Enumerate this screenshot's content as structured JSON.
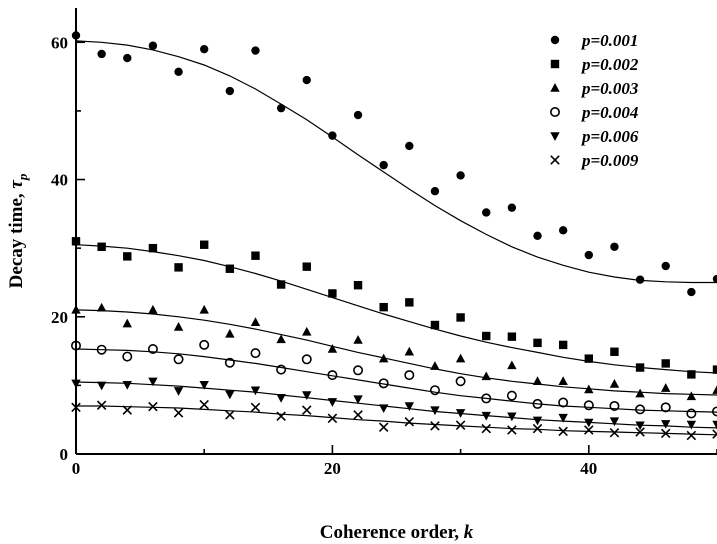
{
  "chart_data": {
    "type": "scatter",
    "xlabel": "Coherence order, ",
    "xlabel_var": "k",
    "ylabel": "Decay time, ",
    "ylabel_var": "τ",
    "ylabel_sub": "p",
    "xlim": [
      0,
      50
    ],
    "ylim": [
      0,
      65
    ],
    "xticks": [
      0,
      20,
      40
    ],
    "yticks": [
      0,
      20,
      40,
      60
    ],
    "legend_position": "top-right",
    "grid": false,
    "x": [
      0,
      2,
      4,
      6,
      8,
      10,
      12,
      14,
      16,
      18,
      20,
      22,
      24,
      26,
      28,
      30,
      32,
      34,
      36,
      38,
      40,
      42,
      44,
      46,
      48,
      50
    ],
    "series": [
      {
        "name": "p=0.001",
        "marker": "circle-filled",
        "values": [
          61.0,
          58.3,
          57.7,
          59.5,
          55.7,
          59.0,
          52.9,
          58.8,
          50.4,
          54.5,
          46.4,
          49.4,
          42.1,
          44.9,
          38.3,
          40.6,
          35.2,
          35.9,
          31.8,
          32.6,
          29.0,
          30.2,
          25.4,
          27.4,
          23.6,
          25.5
        ],
        "fit": [
          60.2,
          60.0,
          59.6,
          58.9,
          57.9,
          56.7,
          55.1,
          53.2,
          51.0,
          48.7,
          46.2,
          43.6,
          41.1,
          38.6,
          36.2,
          34.0,
          32.0,
          30.2,
          28.7,
          27.5,
          26.5,
          25.8,
          25.3,
          25.1,
          25.0,
          25.0
        ]
      },
      {
        "name": "p=0.002",
        "marker": "square-filled",
        "values": [
          31.0,
          30.2,
          28.8,
          30.0,
          27.2,
          30.5,
          27.0,
          28.9,
          24.7,
          27.3,
          23.4,
          24.6,
          21.4,
          22.1,
          18.8,
          19.9,
          17.2,
          17.1,
          16.2,
          15.9,
          13.9,
          14.9,
          12.6,
          13.2,
          11.6,
          12.3
        ],
        "fit": [
          30.5,
          30.3,
          30.0,
          29.5,
          28.9,
          28.2,
          27.3,
          26.3,
          25.2,
          24.0,
          22.8,
          21.6,
          20.4,
          19.3,
          18.2,
          17.2,
          16.3,
          15.5,
          14.8,
          14.1,
          13.5,
          13.0,
          12.6,
          12.3,
          12.0,
          11.8
        ]
      },
      {
        "name": "p=0.003",
        "marker": "triangle-filled",
        "values": [
          21.0,
          21.3,
          19.0,
          21.0,
          18.5,
          21.0,
          17.5,
          19.2,
          16.7,
          17.8,
          15.3,
          16.6,
          13.9,
          14.9,
          12.8,
          13.9,
          11.3,
          12.9,
          10.6,
          10.6,
          9.4,
          10.2,
          8.8,
          9.6,
          8.4,
          9.3
        ],
        "fit": [
          21.0,
          20.9,
          20.7,
          20.4,
          20.0,
          19.5,
          18.9,
          18.2,
          17.4,
          16.6,
          15.7,
          14.8,
          14.0,
          13.2,
          12.4,
          11.7,
          11.1,
          10.6,
          10.2,
          9.8,
          9.5,
          9.2,
          9.0,
          8.8,
          8.7,
          8.6
        ]
      },
      {
        "name": "p=0.004",
        "marker": "circle-open",
        "values": [
          15.8,
          15.2,
          14.2,
          15.3,
          13.8,
          15.9,
          13.3,
          14.7,
          12.3,
          13.8,
          11.5,
          12.2,
          10.3,
          11.5,
          9.3,
          10.6,
          8.1,
          8.5,
          7.3,
          7.5,
          7.1,
          7.0,
          6.5,
          6.8,
          5.9,
          6.2
        ],
        "fit": [
          15.3,
          15.2,
          15.1,
          14.9,
          14.6,
          14.2,
          13.7,
          13.2,
          12.6,
          12.0,
          11.4,
          10.8,
          10.2,
          9.6,
          9.0,
          8.5,
          8.1,
          7.7,
          7.3,
          7.0,
          6.8,
          6.6,
          6.4,
          6.3,
          6.2,
          6.1
        ]
      },
      {
        "name": "p=0.006",
        "marker": "triangle-down-filled",
        "values": [
          10.3,
          10.0,
          10.1,
          10.6,
          9.2,
          10.1,
          8.7,
          9.3,
          8.2,
          8.6,
          7.6,
          8.0,
          6.7,
          7.0,
          6.4,
          6.0,
          5.6,
          5.5,
          4.9,
          5.3,
          4.6,
          4.8,
          4.2,
          4.4,
          4.3,
          4.3
        ],
        "fit": [
          10.5,
          10.4,
          10.3,
          10.1,
          9.9,
          9.6,
          9.3,
          9.0,
          8.6,
          8.2,
          7.8,
          7.4,
          7.0,
          6.6,
          6.2,
          5.9,
          5.6,
          5.3,
          5.0,
          4.8,
          4.6,
          4.4,
          4.2,
          4.1,
          3.9,
          3.8
        ]
      },
      {
        "name": "p=0.009",
        "marker": "cross",
        "values": [
          6.8,
          7.1,
          6.4,
          6.9,
          6.0,
          7.2,
          5.7,
          6.8,
          5.5,
          6.4,
          5.2,
          5.7,
          3.9,
          4.7,
          4.1,
          4.2,
          3.7,
          3.5,
          3.7,
          3.3,
          3.5,
          3.1,
          3.2,
          3.0,
          2.7,
          2.9
        ],
        "fit": [
          7.0,
          7.0,
          6.9,
          6.8,
          6.7,
          6.5,
          6.3,
          6.1,
          5.8,
          5.6,
          5.3,
          5.0,
          4.8,
          4.5,
          4.3,
          4.1,
          3.9,
          3.7,
          3.6,
          3.4,
          3.3,
          3.2,
          3.1,
          3.0,
          2.9,
          2.8
        ]
      }
    ]
  }
}
